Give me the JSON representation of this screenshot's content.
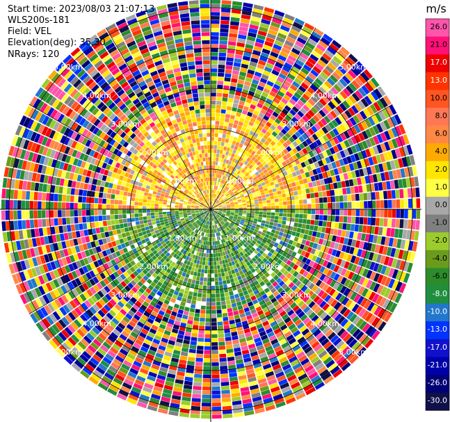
{
  "header": {
    "start_time": "Start time: 2023/08/03 21:07:13",
    "station": "WLS200s-181",
    "field": "Field: VEL",
    "elevation": "Elevation(deg): 35.30",
    "nrays": "NRays: 120"
  },
  "colorbar": {
    "unit": "m/s",
    "ticks": [
      "26.0",
      "21.0",
      "17.0",
      "13.0",
      "10.0",
      "8.0",
      "6.0",
      "4.0",
      "2.0",
      "1.0",
      "0.0",
      "-1.0",
      "-2.0",
      "-4.0",
      "-6.0",
      "-8.0",
      "-10.0",
      "-13.0",
      "-17.0",
      "-21.0",
      "-26.0",
      "-30.0"
    ],
    "colors": [
      "#ff55aa",
      "#ff1177",
      "#ee0000",
      "#ff3300",
      "#ff5522",
      "#ff7755",
      "#ff8844",
      "#ffaa00",
      "#ffe600",
      "#ffff44",
      "#a8a8a8",
      "#808080",
      "#9ccc2c",
      "#6b9b1c",
      "#2c8c2c",
      "#1f8f3f",
      "#2277cc",
      "#0033ff",
      "#1111cc",
      "#0000aa",
      "#000077",
      "#10104a"
    ],
    "dark_label_bins": [
      2,
      3,
      15,
      16,
      17,
      18,
      19,
      20,
      21
    ]
  },
  "chart_data": {
    "type": "heatmap",
    "title": "",
    "projection": "polar (PPI)",
    "field": "VEL",
    "units": "m/s",
    "nrays": 120,
    "range_rings_km": [
      1,
      2,
      3,
      4,
      5
    ],
    "ring_labels": [
      "1.00km",
      "2.00km",
      "3.00km",
      "4.00km",
      "5.00km"
    ],
    "spoke_angles_deg": [
      0,
      30,
      60,
      90,
      120,
      150,
      180,
      210,
      240,
      270,
      300,
      330
    ],
    "max_range_km": 5.2,
    "near_range_pattern": {
      "north_sector_vel_ms": "2.0 to 10.0",
      "south_sector_vel_ms": "-1.0 to -8.0",
      "beyond_km": 2.6,
      "beyond_description": "noise"
    }
  }
}
